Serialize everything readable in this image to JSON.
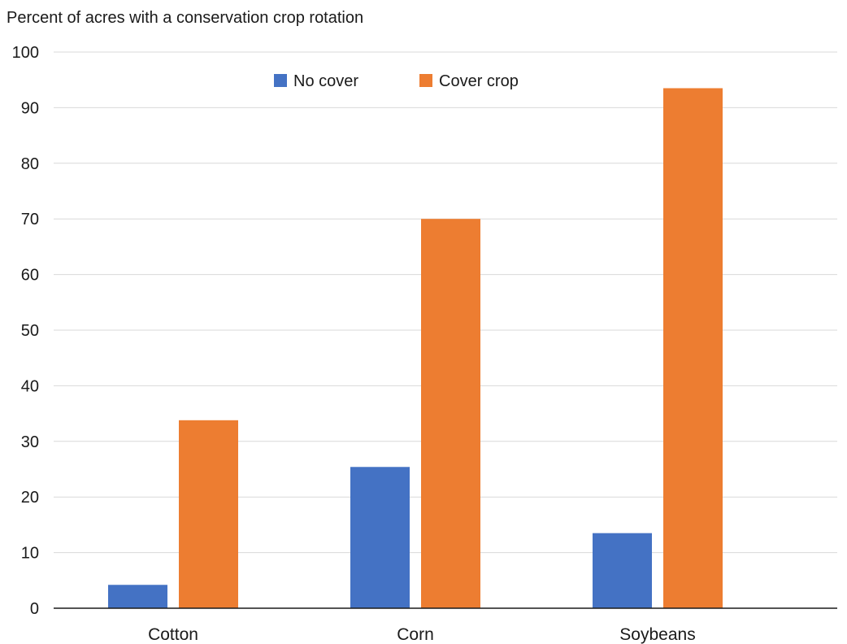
{
  "chart_data": {
    "type": "bar",
    "title": "Percent of acres with a conservation crop rotation",
    "categories": [
      "Cotton",
      "Corn",
      "Soybeans"
    ],
    "series": [
      {
        "name": "No cover",
        "color": "#4472C4",
        "values": [
          4.2,
          25.4,
          13.5
        ]
      },
      {
        "name": "Cover crop",
        "color": "#ED7D31",
        "values": [
          33.8,
          70.0,
          93.5
        ]
      }
    ],
    "ylim": [
      0,
      100
    ],
    "yticks": [
      0,
      10,
      20,
      30,
      40,
      50,
      60,
      70,
      80,
      90,
      100
    ],
    "grid": true,
    "legend_position": "top-center",
    "xlabel": "",
    "ylabel": ""
  }
}
